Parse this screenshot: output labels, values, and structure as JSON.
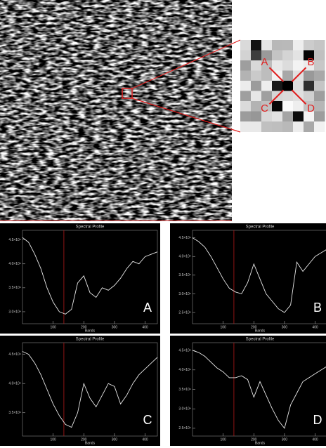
{
  "inset": {
    "labels": [
      "A",
      "B",
      "C",
      "D"
    ]
  },
  "chart_data": [
    {
      "type": "line",
      "title": "Spectral Profile",
      "x_label": "Bands",
      "panel_label": "A",
      "line_color": "#e8e8e8",
      "cursor_color": "#b01818",
      "cursor_band": 135,
      "x": [
        0,
        20,
        40,
        60,
        80,
        100,
        120,
        140,
        160,
        180,
        200,
        220,
        240,
        260,
        280,
        300,
        320,
        340,
        360,
        380,
        400,
        420,
        440
      ],
      "values": [
        45500,
        44500,
        42000,
        39000,
        35000,
        32000,
        30000,
        29500,
        30500,
        36000,
        37500,
        34000,
        33000,
        35000,
        34500,
        35500,
        37000,
        39000,
        40500,
        40000,
        41500,
        42000,
        42500
      ],
      "xlim": [
        0,
        440
      ],
      "xticks": [
        100,
        200,
        300,
        400
      ],
      "ylim": [
        27500,
        47000
      ],
      "yticks": [
        {
          "value": 30000,
          "label": "3.0×10⁴"
        },
        {
          "value": 35000,
          "label": "3.5×10⁴"
        },
        {
          "value": 40000,
          "label": "4.0×10⁴"
        },
        {
          "value": 45000,
          "label": "4.5×10⁴"
        }
      ]
    },
    {
      "type": "line",
      "title": "Spectral Profile",
      "x_label": "Bands",
      "panel_label": "B",
      "line_color": "#e8e8e8",
      "cursor_color": "#b01818",
      "cursor_band": 135,
      "x": [
        0,
        20,
        40,
        60,
        80,
        100,
        120,
        140,
        160,
        180,
        200,
        220,
        240,
        260,
        280,
        300,
        320,
        340,
        360,
        380,
        400,
        420,
        440
      ],
      "values": [
        45000,
        44000,
        42500,
        40000,
        37000,
        34000,
        31500,
        30500,
        30000,
        33000,
        38000,
        34000,
        30000,
        28000,
        26000,
        25000,
        27000,
        38500,
        36000,
        38000,
        40000,
        41000,
        42000
      ],
      "xlim": [
        0,
        440
      ],
      "xticks": [
        100,
        200,
        300,
        400
      ],
      "ylim": [
        22000,
        47000
      ],
      "yticks": [
        {
          "value": 25000,
          "label": "2.5×10⁴"
        },
        {
          "value": 30000,
          "label": "3.0×10⁴"
        },
        {
          "value": 35000,
          "label": "3.5×10⁴"
        },
        {
          "value": 40000,
          "label": "4.0×10⁴"
        },
        {
          "value": 45000,
          "label": "4.5×10⁴"
        }
      ]
    },
    {
      "type": "line",
      "title": "Spectral Profile",
      "x_label": "Bands",
      "panel_label": "C",
      "line_color": "#e8e8e8",
      "cursor_color": "#b01818",
      "cursor_band": 135,
      "x": [
        0,
        20,
        40,
        60,
        80,
        100,
        120,
        140,
        160,
        180,
        200,
        220,
        240,
        260,
        280,
        300,
        320,
        340,
        360,
        380,
        400,
        420,
        440
      ],
      "values": [
        45500,
        45000,
        43500,
        41500,
        39000,
        36500,
        34500,
        33000,
        32500,
        35000,
        40000,
        37500,
        36000,
        38000,
        40000,
        39500,
        36500,
        38000,
        40000,
        41500,
        42500,
        43500,
        44500
      ],
      "xlim": [
        0,
        440
      ],
      "xticks": [
        100,
        200,
        300,
        400
      ],
      "ylim": [
        31000,
        47000
      ],
      "yticks": [
        {
          "value": 35000,
          "label": "3.5×10⁴"
        },
        {
          "value": 40000,
          "label": "4.0×10⁴"
        },
        {
          "value": 45000,
          "label": "4.5×10⁴"
        }
      ]
    },
    {
      "type": "line",
      "title": "Spectral Profile",
      "x_label": "Bands",
      "panel_label": "D",
      "line_color": "#e8e8e8",
      "cursor_color": "#b01818",
      "cursor_band": 135,
      "x": [
        0,
        20,
        40,
        60,
        80,
        100,
        120,
        140,
        160,
        180,
        200,
        220,
        240,
        260,
        280,
        300,
        320,
        340,
        360,
        380,
        400,
        420,
        440
      ],
      "values": [
        45000,
        44500,
        43500,
        42000,
        40500,
        39500,
        38000,
        38000,
        38500,
        37500,
        33000,
        37000,
        33500,
        30000,
        27000,
        25000,
        31000,
        34000,
        37000,
        38000,
        39000,
        40000,
        41000
      ],
      "xlim": [
        0,
        440
      ],
      "xticks": [
        100,
        200,
        300,
        400
      ],
      "ylim": [
        23000,
        47000
      ],
      "yticks": [
        {
          "value": 25000,
          "label": "2.5×10⁴"
        },
        {
          "value": 30000,
          "label": "3.0×10⁴"
        },
        {
          "value": 35000,
          "label": "3.5×10⁴"
        },
        {
          "value": 40000,
          "label": "4.0×10⁴"
        },
        {
          "value": 45000,
          "label": "4.5×10⁴"
        }
      ]
    }
  ]
}
